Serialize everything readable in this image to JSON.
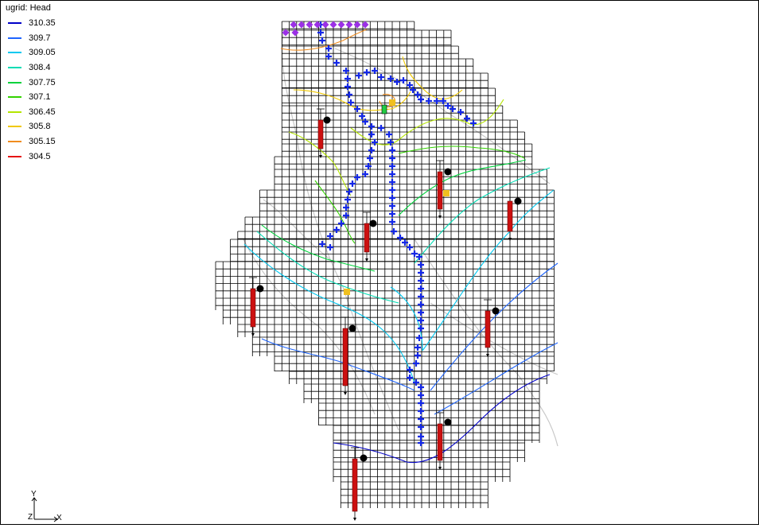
{
  "legend": {
    "title": "ugrid: Head",
    "items": [
      {
        "label": "310.35",
        "color": "#0000c8"
      },
      {
        "label": "309.7",
        "color": "#1e64ff"
      },
      {
        "label": "309.05",
        "color": "#00c8f0"
      },
      {
        "label": "308.4",
        "color": "#00dcb4"
      },
      {
        "label": "307.75",
        "color": "#00d23c"
      },
      {
        "label": "307.1",
        "color": "#32d200"
      },
      {
        "label": "306.45",
        "color": "#b4e600"
      },
      {
        "label": "305.8",
        "color": "#f0c800"
      },
      {
        "label": "305.15",
        "color": "#f08c1e"
      },
      {
        "label": "304.5",
        "color": "#e61414"
      }
    ]
  },
  "axes": {
    "y_label": "Y",
    "z_label": "Z",
    "x_label": "X"
  },
  "colors": {
    "grid_line": "#000000",
    "river_marker": "#1428e6",
    "spec_head_marker": "#9b30e6",
    "well_bar": "#cc1010",
    "well_marker": "#000000",
    "highlight": "#f0c020"
  }
}
